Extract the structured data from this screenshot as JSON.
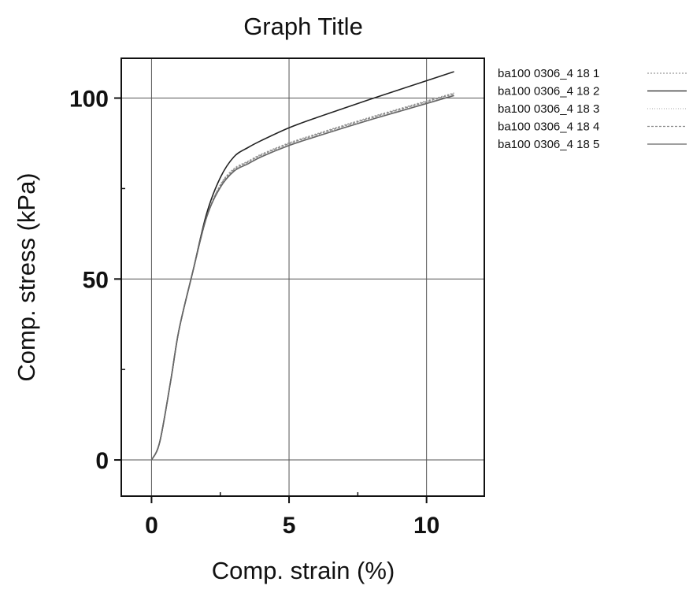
{
  "chart_data": {
    "type": "line",
    "title": "Graph Title",
    "xlabel": "Comp. strain (%)",
    "ylabel": "Comp. stress (kPa)",
    "xlim": [
      -1.1,
      12.1
    ],
    "ylim": [
      -10,
      111
    ],
    "x_ticks": [
      0,
      5,
      10
    ],
    "x_tick_labels": [
      "0",
      "5",
      "10"
    ],
    "y_ticks": [
      0,
      50,
      100
    ],
    "y_tick_labels": [
      "0",
      "50",
      "100"
    ],
    "grid": true,
    "legend_position": "right",
    "series": [
      {
        "name": "ba100 0306_4 18 1",
        "color": "#9a9a9a",
        "dash": "2,2",
        "x": [
          0,
          0.3,
          0.7,
          1.0,
          1.5,
          2.0,
          2.5,
          3.0,
          3.5,
          4.0,
          5.0,
          6.0,
          7.0,
          8.0,
          9.0,
          10.0,
          11.0
        ],
        "y": [
          0,
          5,
          22,
          36,
          52,
          67,
          76,
          80.5,
          82.5,
          84.5,
          87.6,
          90.1,
          92.5,
          94.8,
          97,
          99.2,
          101.4
        ]
      },
      {
        "name": "ba100 0306_4 18 2",
        "color": "#222222",
        "dash": "",
        "x": [
          0,
          0.3,
          0.7,
          1.0,
          1.5,
          2.0,
          2.5,
          3.0,
          3.5,
          4.0,
          5.0,
          6.0,
          7.0,
          8.0,
          9.0,
          10.0,
          11.0
        ],
        "y": [
          0,
          5,
          22,
          36,
          52,
          68,
          78,
          83.8,
          86.3,
          88.3,
          91.8,
          94.6,
          97.2,
          99.8,
          102.3,
          104.8,
          107.3
        ]
      },
      {
        "name": "ba100 0306_4 18 3",
        "color": "#b8b8b8",
        "dash": "1,2",
        "x": [
          0,
          0.3,
          0.7,
          1.0,
          1.5,
          2.0,
          2.5,
          3.0,
          3.5,
          4.0,
          5.0,
          6.0,
          7.0,
          8.0,
          9.0,
          10.0,
          11.0
        ],
        "y": [
          0,
          5,
          22,
          36,
          52,
          67,
          75.5,
          80,
          82.1,
          84.1,
          87.1,
          89.6,
          92,
          94.3,
          96.5,
          98.7,
          100.9
        ]
      },
      {
        "name": "ba100 0306_4 18 4",
        "color": "#8a8a8a",
        "dash": "3,2",
        "x": [
          0,
          0.3,
          0.7,
          1.0,
          1.5,
          2.0,
          2.5,
          3.0,
          3.5,
          4.0,
          5.0,
          6.0,
          7.0,
          8.0,
          9.0,
          10.0,
          11.0
        ],
        "y": [
          0,
          5,
          22,
          36,
          52,
          67,
          75.8,
          80.2,
          82.3,
          84.3,
          87.4,
          89.9,
          92.3,
          94.6,
          96.8,
          99,
          101.2
        ]
      },
      {
        "name": "ba100 0306_4 18 5",
        "color": "#666666",
        "dash": "",
        "x": [
          0,
          0.3,
          0.7,
          1.0,
          1.5,
          2.0,
          2.5,
          3.0,
          3.5,
          4.0,
          5.0,
          6.0,
          7.0,
          8.0,
          9.0,
          10.0,
          11.0
        ],
        "y": [
          0,
          5,
          22,
          36,
          52,
          67,
          75.3,
          79.8,
          81.8,
          83.8,
          86.9,
          89.4,
          91.8,
          94.1,
          96.3,
          98.5,
          100.7
        ]
      }
    ]
  }
}
